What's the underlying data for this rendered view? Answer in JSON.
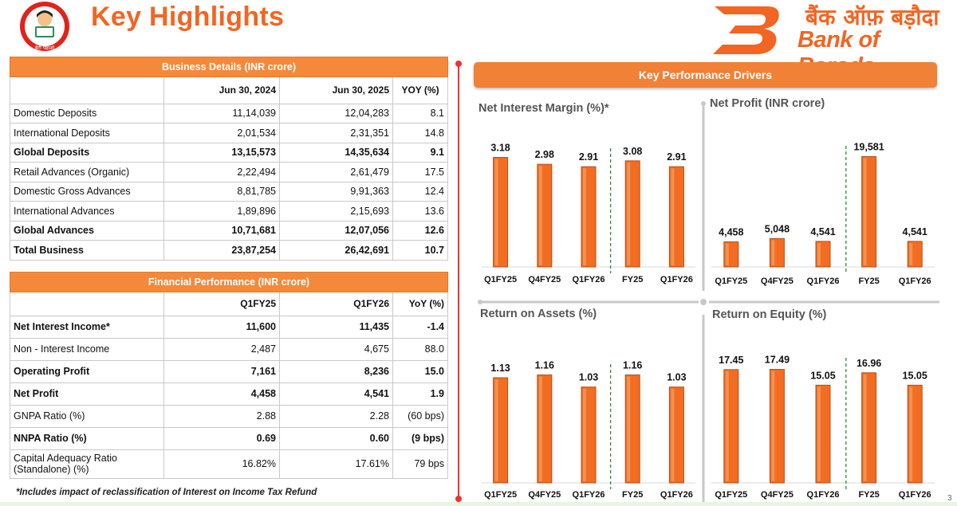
{
  "header": {
    "title": "Key Highlights",
    "logo_left_caption": "बेटी पढ़ाओ",
    "brand_hindi": "बैंक ऑफ़ बड़ौदा",
    "brand_en": "Bank of Baroda",
    "accent_color": "#f26522"
  },
  "business_details": {
    "title": "Business Details (INR crore)",
    "columns": [
      "Jun 30, 2024",
      "Jun 30, 2025",
      "YOY (%)"
    ],
    "rows": [
      {
        "label": "Domestic Deposits",
        "v1": "11,14,039",
        "v2": "12,04,283",
        "yoy": "8.1",
        "bold": false
      },
      {
        "label": "International Deposits",
        "v1": "2,01,534",
        "v2": "2,31,351",
        "yoy": "14.8",
        "bold": false
      },
      {
        "label": "Global Deposits",
        "v1": "13,15,573",
        "v2": "14,35,634",
        "yoy": "9.1",
        "bold": true
      },
      {
        "label": "Retail Advances (Organic)",
        "v1": "2,22,494",
        "v2": "2,61,479",
        "yoy": "17.5",
        "bold": false
      },
      {
        "label": "Domestic Gross Advances",
        "v1": "8,81,785",
        "v2": "9,91,363",
        "yoy": "12.4",
        "bold": false
      },
      {
        "label": "International Advances",
        "v1": "1,89,896",
        "v2": "2,15,693",
        "yoy": "13.6",
        "bold": false
      },
      {
        "label": " Global Advances",
        "v1": "10,71,681",
        "v2": "12,07,056",
        "yoy": "12.6",
        "bold": true
      },
      {
        "label": "Total Business",
        "v1": "23,87,254",
        "v2": "26,42,691",
        "yoy": "10.7",
        "bold": true
      }
    ]
  },
  "financial_performance": {
    "title": "Financial Performance (INR crore)",
    "columns": [
      "Q1FY25",
      "Q1FY26",
      "YoY (%)"
    ],
    "rows": [
      {
        "label": "Net Interest Income*",
        "v1": "11,600",
        "v2": "11,435",
        "yoy": "-1.4",
        "bold": true
      },
      {
        "label": "Non - Interest Income",
        "v1": "2,487",
        "v2": "4,675",
        "yoy": "88.0",
        "bold": false
      },
      {
        "label": "Operating Profit",
        "v1": "7,161",
        "v2": "8,236",
        "yoy": "15.0",
        "bold": true
      },
      {
        "label": "Net Profit",
        "v1": "4,458",
        "v2": "4,541",
        "yoy": "1.9",
        "bold": true
      },
      {
        "label": "GNPA Ratio (%)",
        "v1": "2.88",
        "v2": "2.28",
        "yoy": "(60 bps)",
        "bold": false
      },
      {
        "label": "NNPA Ratio (%)",
        "v1": "0.69",
        "v2": "0.60",
        "yoy": "(9 bps)",
        "bold": true
      },
      {
        "label": "Capital Adequacy Ratio (Standalone) (%)",
        "v1": "16.82%",
        "v2": "17.61%",
        "yoy": "79 bps",
        "bold": false
      }
    ],
    "footnote": "*Includes impact of reclassification of Interest on Income Tax Refund"
  },
  "panel": {
    "title": "Key Performance Drivers",
    "page_number": "3"
  },
  "chart_data": [
    {
      "type": "bar",
      "title": "Net Interest Margin (%)*",
      "categories": [
        "Q1FY25",
        "Q4FY25",
        "Q1FY26",
        "FY25",
        "Q1FY26"
      ],
      "values": [
        3.18,
        2.98,
        2.91,
        3.08,
        2.91
      ],
      "labels": [
        "3.18",
        "2.98",
        "2.91",
        "3.08",
        "2.91"
      ],
      "separator_after_index": 2,
      "bar_color": "#f26d21",
      "ylim": [
        0,
        3.4
      ]
    },
    {
      "type": "bar",
      "title": "Net Profit (INR crore)",
      "categories": [
        "Q1FY25",
        "Q4FY25",
        "Q1FY26",
        "FY25",
        "Q1FY26"
      ],
      "values": [
        4458,
        5048,
        4541,
        19581,
        4541
      ],
      "labels": [
        "4,458",
        "5,048",
        "4,541",
        "19,581",
        "4,541"
      ],
      "separator_after_index": 2,
      "bar_color": "#f26d21",
      "ylim": [
        0,
        20500
      ]
    },
    {
      "type": "bar",
      "title": "Return on Assets (%)",
      "categories": [
        "Q1FY25",
        "Q4FY25",
        "Q1FY26",
        "FY25",
        "Q1FY26"
      ],
      "values": [
        1.13,
        1.16,
        1.03,
        1.16,
        1.03
      ],
      "labels": [
        "1.13",
        "1.16",
        "1.03",
        "1.16",
        "1.03"
      ],
      "separator_after_index": 2,
      "bar_color": "#f26d21",
      "ylim": [
        0,
        1.25
      ]
    },
    {
      "type": "bar",
      "title": "Return on Equity (%)",
      "categories": [
        "Q1FY25",
        "Q4FY25",
        "Q1FY26",
        "FY25",
        "Q1FY26"
      ],
      "values": [
        17.45,
        17.49,
        15.05,
        16.96,
        15.05
      ],
      "labels": [
        "17.45",
        "17.49",
        "15.05",
        "16.96",
        "15.05"
      ],
      "separator_after_index": 2,
      "bar_color": "#f26d21",
      "ylim": [
        0,
        18.9
      ]
    }
  ]
}
